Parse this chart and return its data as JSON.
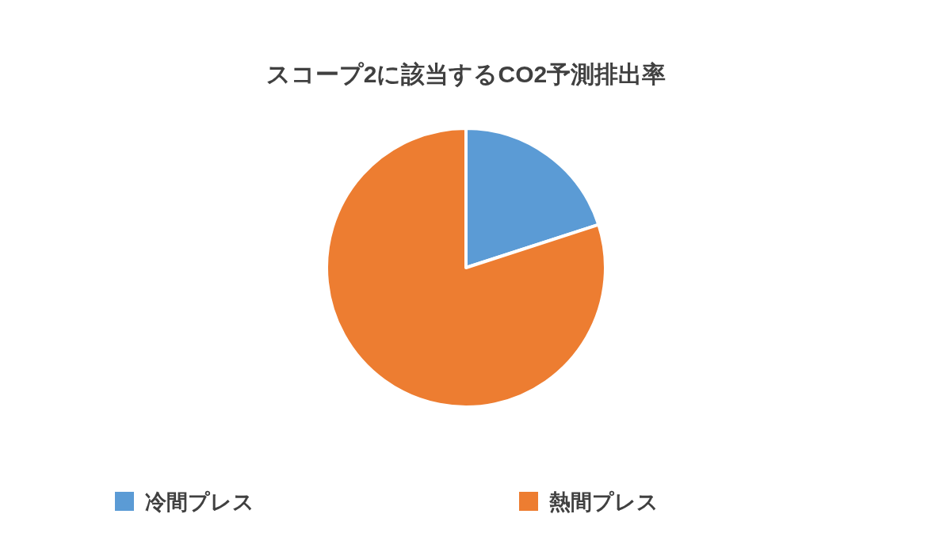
{
  "chart_data": {
    "type": "pie",
    "title": "スコープ2に該当するCO2予測排出率",
    "categories": [
      "冷間プレス",
      "熱間プレス"
    ],
    "values": [
      20,
      80
    ],
    "colors": [
      "#5b9bd5",
      "#ed7d31"
    ],
    "legend": "bottom"
  }
}
